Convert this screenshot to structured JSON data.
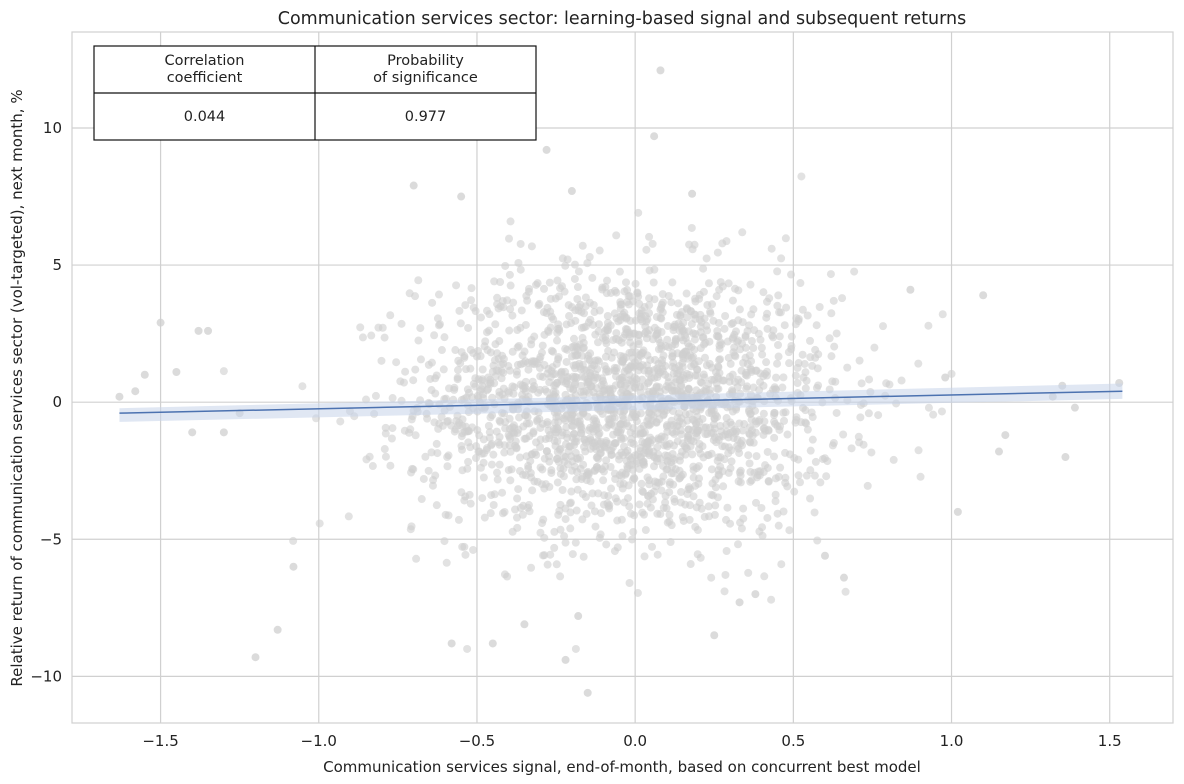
{
  "chart_data": {
    "type": "scatter",
    "title": "Communication services sector: learning-based signal and subsequent returns",
    "xlabel": "Communication services signal, end-of-month, based on concurrent best model",
    "ylabel": "Relative return of communication services sector (vol-targeted), next month, %",
    "xlim": [
      -1.78,
      1.7
    ],
    "ylim": [
      -11.7,
      13.5
    ],
    "x_ticks": [
      -1.5,
      -1.0,
      -0.5,
      0.0,
      0.5,
      1.0,
      1.5
    ],
    "x_tick_labels": [
      "−1.5",
      "−1.0",
      "−0.5",
      "0.0",
      "0.5",
      "1.0",
      "1.5"
    ],
    "y_ticks": [
      -10,
      -5,
      0,
      5,
      10
    ],
    "y_tick_labels": [
      "−10",
      "−5",
      "0",
      "5",
      "10"
    ],
    "grid": true,
    "colors": {
      "points": "#cfcfcf",
      "regression_line": "#4c72b0",
      "confidence_band": "#c7d3ea",
      "grid": "#d0d0d0"
    },
    "regression": {
      "x": [
        -1.63,
        1.54
      ],
      "y": [
        -0.4,
        0.4
      ],
      "ci_upper": [
        -0.22,
        0.68
      ],
      "ci_lower": [
        -0.72,
        0.12
      ]
    },
    "stats_table": {
      "headers": [
        "Correlation\ncoefficient",
        "Probability\nof significance"
      ],
      "values": [
        "0.044",
        "0.977"
      ]
    },
    "outlier_points": [
      {
        "x": 0.08,
        "y": 12.1
      },
      {
        "x": 0.06,
        "y": 9.7
      },
      {
        "x": -0.28,
        "y": 9.2
      },
      {
        "x": -0.7,
        "y": 7.9
      },
      {
        "x": -0.2,
        "y": 7.7
      },
      {
        "x": 0.18,
        "y": 7.6
      },
      {
        "x": -0.55,
        "y": 7.5
      },
      {
        "x": -1.5,
        "y": 2.9
      },
      {
        "x": -1.58,
        "y": 0.4
      },
      {
        "x": -1.63,
        "y": 0.2
      },
      {
        "x": -1.55,
        "y": 1.0
      },
      {
        "x": -1.38,
        "y": 2.6
      },
      {
        "x": -1.35,
        "y": 2.6
      },
      {
        "x": -1.45,
        "y": 1.1
      },
      {
        "x": -1.4,
        "y": -1.1
      },
      {
        "x": -1.3,
        "y": -1.1
      },
      {
        "x": -1.25,
        "y": -0.4
      },
      {
        "x": -1.2,
        "y": -9.3
      },
      {
        "x": -1.13,
        "y": -8.3
      },
      {
        "x": -1.08,
        "y": -6.0
      },
      {
        "x": 1.53,
        "y": 0.7
      },
      {
        "x": 1.35,
        "y": 0.6
      },
      {
        "x": 1.36,
        "y": -2.0
      },
      {
        "x": 1.39,
        "y": -0.2
      },
      {
        "x": 1.32,
        "y": 0.2
      },
      {
        "x": 1.1,
        "y": 3.9
      },
      {
        "x": 1.02,
        "y": -4.0
      },
      {
        "x": 1.17,
        "y": -1.2
      },
      {
        "x": 1.15,
        "y": -1.8
      },
      {
        "x": 0.98,
        "y": 0.9
      },
      {
        "x": 0.87,
        "y": 4.1
      },
      {
        "x": -0.15,
        "y": -10.6
      },
      {
        "x": 0.25,
        "y": -8.5
      },
      {
        "x": -0.22,
        "y": -9.4
      },
      {
        "x": -0.45,
        "y": -8.8
      },
      {
        "x": -0.58,
        "y": -8.8
      },
      {
        "x": 0.33,
        "y": -7.3
      },
      {
        "x": 0.38,
        "y": -7.0
      },
      {
        "x": 0.66,
        "y": -6.4
      },
      {
        "x": 0.6,
        "y": -5.6
      },
      {
        "x": -0.35,
        "y": -8.1
      },
      {
        "x": -0.18,
        "y": -7.8
      }
    ],
    "bulk_cloud": {
      "n_points": 2200,
      "x_mean": -0.02,
      "x_sd": 0.33,
      "y_mean": 0.0,
      "y_sd": 2.4
    }
  }
}
